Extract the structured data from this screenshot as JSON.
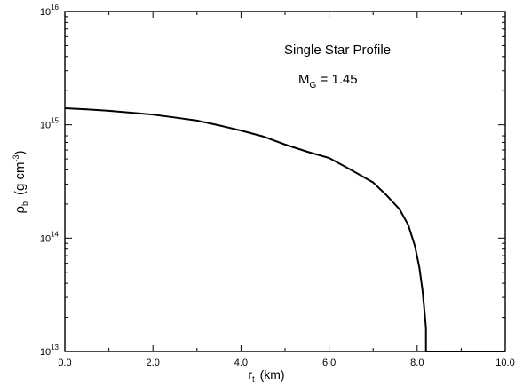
{
  "chart_data": {
    "type": "line",
    "xlabel": {
      "main": "r",
      "sub": "t",
      "unit": "(km)"
    },
    "ylabel": {
      "main": "ρ",
      "sub": "b",
      "unit_a": "(g cm",
      "unit_sup": "-3",
      "unit_b": ")"
    },
    "annotations": {
      "title": "Single Star Profile",
      "mass_main": "M",
      "mass_sub": "G",
      "mass_value": " = 1.45"
    },
    "xlim": [
      0,
      10
    ],
    "ylim": [
      10000000000000.0,
      1e+16
    ],
    "y_scale": "log",
    "grid": false,
    "x_ticks": [
      0,
      2,
      4,
      6,
      8,
      10
    ],
    "x_tick_labels": [
      "0.0",
      "2.0",
      "4.0",
      "6.0",
      "8.0",
      "10.0"
    ],
    "y_ticks": [
      {
        "base": "10",
        "exp": "13",
        "value": 10000000000000.0
      },
      {
        "base": "10",
        "exp": "14",
        "value": 100000000000000.0
      },
      {
        "base": "10",
        "exp": "15",
        "value": 1000000000000000.0
      },
      {
        "base": "10",
        "exp": "16",
        "value": 1e+16
      }
    ],
    "series": [
      {
        "x": [
          0,
          0.5,
          1.0,
          1.5,
          2.0,
          2.5,
          3.0,
          3.5,
          4.0,
          4.5,
          5.0,
          5.5,
          6.0,
          6.5,
          7.0,
          7.3,
          7.6,
          7.8,
          7.95,
          8.05,
          8.12,
          8.17,
          8.2,
          8.2,
          8.3,
          10.0
        ],
        "y": [
          1400000000000000.0,
          1370000000000000.0,
          1330000000000000.0,
          1280000000000000.0,
          1230000000000000.0,
          1160000000000000.0,
          1090000000000000.0,
          990000000000000.0,
          890000000000000.0,
          790000000000000.0,
          670000000000000.0,
          580000000000000.0,
          510000000000000.0,
          400000000000000.0,
          310000000000000.0,
          240000000000000.0,
          180000000000000.0,
          130000000000000.0,
          85000000000000.0,
          55000000000000.0,
          35000000000000.0,
          22000000000000.0,
          16000000000000.0,
          10000000000000.0,
          10000000000000.0,
          10000000000000.0
        ]
      }
    ]
  }
}
